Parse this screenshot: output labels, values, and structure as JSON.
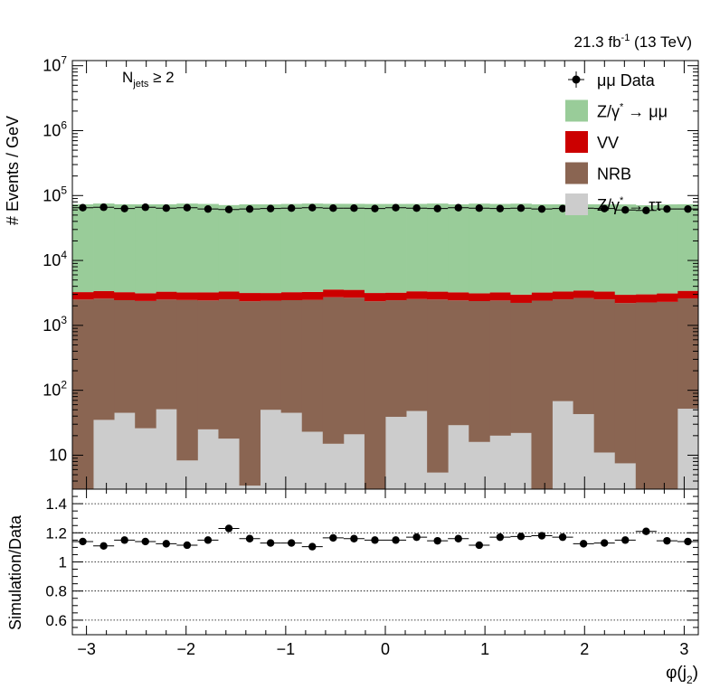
{
  "lumi_label": "21.3 fb",
  "lumi_exp": "-1",
  "lumi_energy": " (13 TeV)",
  "selection": {
    "base": "N",
    "sub": "jets",
    "cut": " ≥ 2"
  },
  "top_panel": {
    "ylabel": "# Events / GeV",
    "y_ticks": [
      "10",
      "10",
      "10",
      "10",
      "10",
      "10",
      "10"
    ],
    "y_exps": [
      "",
      "2",
      "3",
      "4",
      "5",
      "6",
      "7"
    ]
  },
  "bottom_panel": {
    "ylabel": "Simulation/Data",
    "y_ticks": [
      "0.6",
      "0.8",
      "1",
      "1.2",
      "1.4"
    ]
  },
  "x_ticks": [
    "−3",
    "−2",
    "−1",
    "0",
    "1",
    "2",
    "3"
  ],
  "xlabel": {
    "base": "φ(j",
    "sub": "2",
    "end": ")"
  },
  "legend": [
    {
      "label": "μμ Data",
      "kind": "marker"
    },
    {
      "label": "Z/γ",
      "sup": "*",
      "tail": " → μμ",
      "kind": "box",
      "color": "#99cc99"
    },
    {
      "label": "VV",
      "kind": "box",
      "color": "#cc0000"
    },
    {
      "label": "NRB",
      "kind": "box",
      "color": "#8a6552"
    },
    {
      "label": "Z/γ",
      "sup": "*",
      "tail": " → ττ",
      "kind": "box",
      "color": "#cccccc"
    }
  ],
  "chart_data": {
    "type": "bar",
    "stacked": true,
    "x_range": [
      -3.1416,
      3.1416
    ],
    "n_bins": 30,
    "y_log": true,
    "ylim": [
      3,
      12000000
    ],
    "series": [
      {
        "name": "Z/γ* → ττ",
        "color": "#cccccc",
        "values": [
          3,
          35,
          45,
          26,
          51,
          8.3,
          25,
          18,
          3.4,
          50,
          45,
          23,
          15,
          21,
          3,
          39,
          48,
          5.4,
          29,
          16,
          20,
          22,
          3,
          68,
          43,
          11,
          7.5,
          3,
          3,
          52
        ]
      },
      {
        "name": "NRB",
        "color": "#8a6552",
        "values": [
          2500,
          2550,
          2400,
          2350,
          2450,
          2450,
          2400,
          2500,
          2350,
          2350,
          2400,
          2450,
          2700,
          2650,
          2350,
          2400,
          2500,
          2500,
          2400,
          2350,
          2400,
          2200,
          2400,
          2450,
          2600,
          2500,
          2200,
          2250,
          2300,
          2550
        ]
      },
      {
        "name": "VV",
        "color": "#cc0000",
        "values": [
          750,
          800,
          800,
          750,
          800,
          750,
          800,
          800,
          800,
          750,
          800,
          800,
          850,
          850,
          800,
          750,
          800,
          800,
          800,
          750,
          800,
          750,
          800,
          800,
          800,
          800,
          750,
          750,
          800,
          800
        ]
      },
      {
        "name": "Z/γ* → μμ",
        "color": "#99cc99",
        "values": [
          70000,
          72000,
          70000,
          70000,
          70000,
          72000,
          71000,
          68000,
          70000,
          70000,
          71000,
          72000,
          71000,
          71000,
          71000,
          71000,
          71000,
          72000,
          70000,
          72000,
          71000,
          72000,
          70000,
          70000,
          70000,
          70000,
          70000,
          68000,
          70000,
          70000
        ]
      }
    ],
    "data": {
      "name": "μμ Data",
      "values": [
        65000,
        66000,
        63000,
        66000,
        64000,
        65000,
        62000,
        61000,
        62000,
        63000,
        64000,
        65000,
        64000,
        64000,
        63000,
        65000,
        64000,
        63000,
        65000,
        64000,
        63000,
        64000,
        62000,
        63000,
        64000,
        63000,
        60000,
        59000,
        62000,
        62000
      ]
    },
    "ratio": {
      "ylim": [
        0.5,
        1.5
      ],
      "gridlines": [
        0.6,
        0.8,
        1,
        1.2,
        1.4
      ],
      "values": [
        1.14,
        1.11,
        1.15,
        1.14,
        1.125,
        1.115,
        1.15,
        1.23,
        1.16,
        1.13,
        1.13,
        1.105,
        1.165,
        1.16,
        1.15,
        1.15,
        1.17,
        1.145,
        1.16,
        1.115,
        1.17,
        1.175,
        1.18,
        1.17,
        1.125,
        1.13,
        1.15,
        1.21,
        1.145,
        1.14
      ]
    }
  }
}
